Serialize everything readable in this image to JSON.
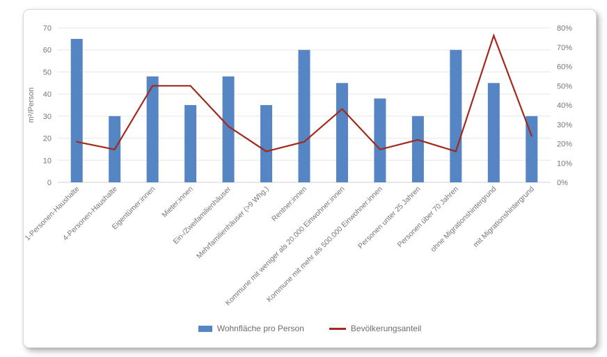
{
  "chart_data": {
    "type": "combo (bar + line)",
    "title": "",
    "categories": [
      "1-Personen-Haushalte",
      "4-Personen-Haushalte",
      "Eigentümer:innen",
      "Mieter:innen",
      "Ein-/Zweifamilienhäuser",
      "Mehrfamilienhäuser (>9 Whg.)",
      "Rentner:innen",
      "Kommune mit weniger als 20.000 Einwohner:innen",
      "Kommune mit mehr als 500.000 Einwohner:innen",
      "Personen unter 25 Jahren",
      "Personen über 70 Jahren",
      "ohne Migrationshintergrund",
      "mit Migrationshintergrund"
    ],
    "series": [
      {
        "name": "Wohnfläche pro Person",
        "type": "bar",
        "axis": "left",
        "unit": "m²",
        "color": "#5585C2",
        "values": [
          65,
          30,
          48,
          35,
          48,
          35,
          60,
          45,
          38,
          30,
          60,
          45,
          30
        ]
      },
      {
        "name": "Bevölkerungsanteil",
        "type": "line",
        "axis": "right",
        "unit": "%",
        "color": "#A1291D",
        "values": [
          21,
          17,
          50,
          50,
          29,
          16,
          21,
          38,
          17,
          22,
          16,
          76,
          24
        ]
      }
    ],
    "left_axis": {
      "label": "m²/Person",
      "min": 0,
      "max": 70,
      "step": 10,
      "ticks": [
        "0",
        "10",
        "20",
        "30",
        "40",
        "50",
        "60",
        "70"
      ]
    },
    "right_axis": {
      "label": "",
      "min": 0,
      "max": 80,
      "step": 10,
      "ticks": [
        "0%",
        "10%",
        "20%",
        "30%",
        "40%",
        "50%",
        "60%",
        "70%",
        "80%"
      ]
    },
    "legend_position": "bottom",
    "grid": true,
    "colors": {
      "gridline": "#e5e5e5",
      "axis_line": "#d0d0d0",
      "tick_text": "#767676",
      "legend_text": "#6d6d6d"
    }
  }
}
